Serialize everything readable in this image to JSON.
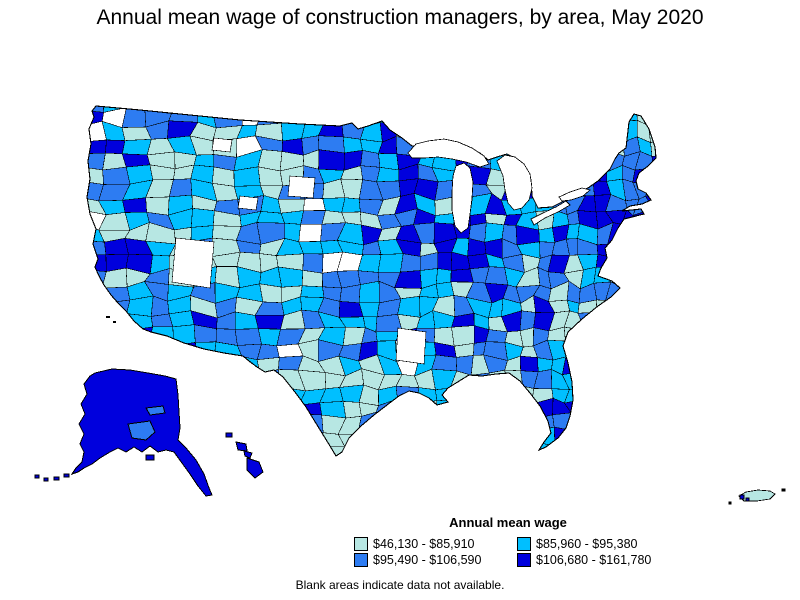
{
  "title": "Annual mean wage of construction managers, by area, May 2020",
  "legend": {
    "title": "Annual mean wage",
    "items": [
      {
        "label": "$46,130 - $85,910",
        "color": "#b7e7e3"
      },
      {
        "label": "$85,960 - $95,380",
        "color": "#00bfff"
      },
      {
        "label": "$95,490 - $106,590",
        "color": "#2d7cf2"
      },
      {
        "label": "$106,680 - $161,780",
        "color": "#0000dd"
      }
    ]
  },
  "note": "Blank areas indicate data not available.",
  "map": {
    "type": "choropleth",
    "no_data_color": "#ffffff",
    "border_color": "#000000",
    "areas_shown": [
      "Contiguous United States",
      "Alaska",
      "Hawaii",
      "Puerto Rico"
    ]
  }
}
